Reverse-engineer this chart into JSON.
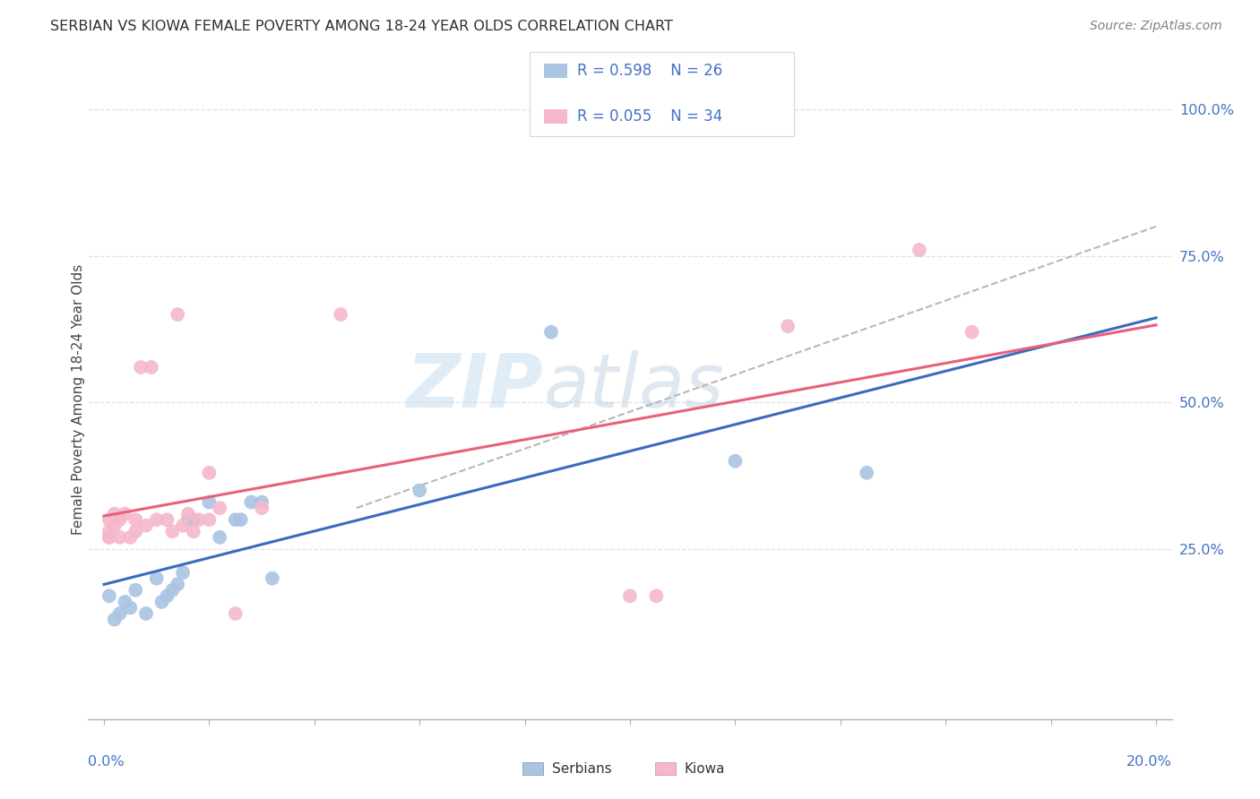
{
  "title": "SERBIAN VS KIOWA FEMALE POVERTY AMONG 18-24 YEAR OLDS CORRELATION CHART",
  "source": "Source: ZipAtlas.com",
  "ylabel": "Female Poverty Among 18-24 Year Olds",
  "serbian_R": "0.598",
  "serbian_N": "26",
  "kiowa_R": "0.055",
  "kiowa_N": "34",
  "serbian_color": "#aac4e2",
  "kiowa_color": "#f5b8cb",
  "serbian_line_color": "#3a6bbd",
  "kiowa_line_color": "#e8607a",
  "background_color": "#ffffff",
  "watermark_zip": "ZIP",
  "watermark_atlas": "atlas",
  "serbian_x": [
    0.001,
    0.002,
    0.003,
    0.004,
    0.005,
    0.006,
    0.008,
    0.01,
    0.011,
    0.012,
    0.013,
    0.014,
    0.015,
    0.016,
    0.017,
    0.02,
    0.022,
    0.025,
    0.026,
    0.028,
    0.03,
    0.032,
    0.06,
    0.085,
    0.12,
    0.145
  ],
  "serbian_y": [
    0.17,
    0.13,
    0.14,
    0.16,
    0.15,
    0.18,
    0.14,
    0.2,
    0.16,
    0.17,
    0.18,
    0.19,
    0.21,
    0.3,
    0.3,
    0.33,
    0.27,
    0.3,
    0.3,
    0.33,
    0.33,
    0.2,
    0.35,
    0.62,
    0.4,
    0.38
  ],
  "kiowa_x": [
    0.001,
    0.001,
    0.001,
    0.001,
    0.002,
    0.002,
    0.003,
    0.003,
    0.004,
    0.005,
    0.006,
    0.006,
    0.007,
    0.008,
    0.009,
    0.01,
    0.012,
    0.013,
    0.014,
    0.015,
    0.016,
    0.017,
    0.018,
    0.02,
    0.02,
    0.022,
    0.025,
    0.03,
    0.045,
    0.1,
    0.105,
    0.13,
    0.155,
    0.165
  ],
  "kiowa_y": [
    0.27,
    0.28,
    0.3,
    0.27,
    0.29,
    0.31,
    0.3,
    0.27,
    0.31,
    0.27,
    0.3,
    0.28,
    0.56,
    0.29,
    0.56,
    0.3,
    0.3,
    0.28,
    0.65,
    0.29,
    0.31,
    0.28,
    0.3,
    0.3,
    0.38,
    0.32,
    0.14,
    0.32,
    0.65,
    0.17,
    0.17,
    0.63,
    0.76,
    0.62
  ],
  "xlim": [
    0.0,
    0.2
  ],
  "ylim": [
    0.0,
    1.05
  ],
  "yticks": [
    0.25,
    0.5,
    0.75,
    1.0
  ],
  "ytick_labels": [
    "25.0%",
    "50.0%",
    "75.0%",
    "100.0%"
  ],
  "xtick_labels_show": [
    "0.0%",
    "20.0%"
  ],
  "grid_color": "#e0e0e0",
  "axis_color": "#b0b0b0",
  "label_color": "#4472c4",
  "title_color": "#2f2f2f",
  "source_color": "#808080"
}
